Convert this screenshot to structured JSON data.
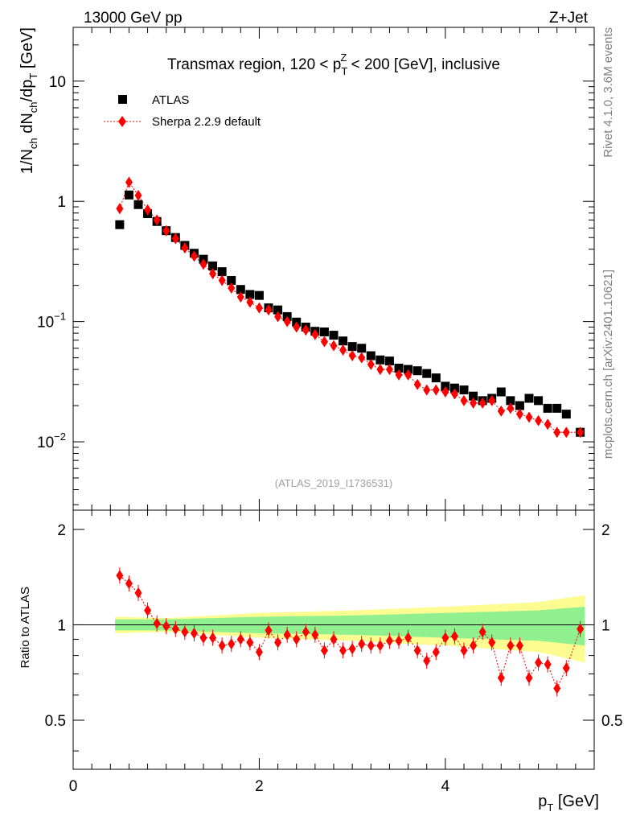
{
  "header": {
    "left": "13000 GeV pp",
    "right": "Z+Jet"
  },
  "side_labels": {
    "rivet": "Rivet 4.1.0,  3.6M events",
    "mcplots": "mcplots.cern.ch [arXiv:2401.10621]"
  },
  "chart_data": {
    "type": "scatter",
    "title": "Transmax region, 120 < p_T^Z < 200 [GeV], inclusive",
    "title_parts": {
      "pre": "Transmax region, 120 < p",
      "sup": "Z",
      "sub": "T",
      "post": " < 200 [GeV], inclusive"
    },
    "analysis_id": "(ATLAS_2019_I1736531)",
    "xlabel": "p_T [GeV]",
    "xlabel_parts": {
      "main": "p",
      "sub": "T",
      "post": " [GeV]"
    },
    "ylabel": "1/N_ch dN_ch/dp_T [GeV]",
    "ylabel_parts": {
      "a": "1/N",
      "b": "ch",
      "c": " dN",
      "d": "ch",
      "e": "/dp",
      "f": "T",
      "g": " [GeV]"
    },
    "ratio_ylabel": "Ratio to ATLAS",
    "xlim": [
      0,
      5.6
    ],
    "ylim": [
      0.0027,
      28
    ],
    "ratio_ylim": [
      0.35,
      2.3
    ],
    "yscale": "log",
    "x_ticks": [
      "0",
      "2",
      "4"
    ],
    "y_ticks": [
      "10",
      "1",
      "10^-1",
      "10^-2"
    ],
    "ratio_ticks": [
      "2",
      "1",
      "0.5"
    ],
    "legend": [
      {
        "label": "ATLAS",
        "marker": "square",
        "color": "#000000"
      },
      {
        "label": "Sherpa 2.2.9 default",
        "marker": "diamond",
        "color": "#ff0000"
      }
    ],
    "x": [
      0.5,
      0.6,
      0.7,
      0.8,
      0.9,
      1.0,
      1.1,
      1.2,
      1.3,
      1.4,
      1.5,
      1.6,
      1.7,
      1.8,
      1.9,
      2.0,
      2.1,
      2.2,
      2.3,
      2.4,
      2.5,
      2.6,
      2.7,
      2.8,
      2.9,
      3.0,
      3.1,
      3.2,
      3.3,
      3.4,
      3.5,
      3.6,
      3.7,
      3.8,
      3.9,
      4.0,
      4.1,
      4.2,
      4.3,
      4.4,
      4.5,
      4.6,
      4.7,
      4.8,
      4.9,
      5.0,
      5.1,
      5.2,
      5.3,
      5.45
    ],
    "series": [
      {
        "name": "ATLAS",
        "values": [
          0.64,
          1.13,
          0.94,
          0.79,
          0.68,
          0.57,
          0.5,
          0.43,
          0.37,
          0.33,
          0.29,
          0.26,
          0.22,
          0.185,
          0.168,
          0.165,
          0.13,
          0.125,
          0.11,
          0.099,
          0.09,
          0.083,
          0.082,
          0.077,
          0.069,
          0.062,
          0.06,
          0.052,
          0.048,
          0.047,
          0.041,
          0.04,
          0.039,
          0.037,
          0.034,
          0.029,
          0.028,
          0.027,
          0.024,
          0.022,
          0.023,
          0.026,
          0.022,
          0.02,
          0.023,
          0.022,
          0.019,
          0.019,
          0.017,
          0.012
        ]
      },
      {
        "name": "Sherpa 2.2.9 default",
        "values": [
          0.87,
          1.44,
          1.12,
          0.85,
          0.7,
          0.57,
          0.49,
          0.41,
          0.35,
          0.3,
          0.25,
          0.22,
          0.19,
          0.16,
          0.145,
          0.13,
          0.125,
          0.11,
          0.1,
          0.09,
          0.085,
          0.078,
          0.068,
          0.063,
          0.058,
          0.052,
          0.05,
          0.044,
          0.04,
          0.04,
          0.036,
          0.036,
          0.03,
          0.027,
          0.027,
          0.026,
          0.025,
          0.022,
          0.021,
          0.021,
          0.022,
          0.018,
          0.019,
          0.017,
          0.016,
          0.015,
          0.014,
          0.012,
          0.012,
          0.012
        ]
      }
    ],
    "ratio": [
      1.43,
      1.35,
      1.26,
      1.11,
      1.01,
      0.99,
      0.97,
      0.95,
      0.94,
      0.91,
      0.91,
      0.86,
      0.87,
      0.9,
      0.88,
      0.82,
      0.96,
      0.88,
      0.93,
      0.9,
      0.95,
      0.93,
      0.83,
      0.9,
      0.83,
      0.84,
      0.87,
      0.86,
      0.86,
      0.89,
      0.89,
      0.91,
      0.83,
      0.77,
      0.82,
      0.91,
      0.92,
      0.83,
      0.86,
      0.95,
      0.88,
      0.68,
      0.86,
      0.86,
      0.68,
      0.76,
      0.75,
      0.63,
      0.73,
      0.97
    ],
    "band_inner": {
      "x": [
        0.45,
        1.0,
        2.0,
        3.0,
        4.0,
        5.0,
        5.5
      ],
      "halfwidth": [
        0.04,
        0.04,
        0.06,
        0.07,
        0.09,
        0.11,
        0.14
      ]
    },
    "band_outer": {
      "x": [
        0.45,
        1.0,
        2.0,
        3.0,
        4.0,
        5.0,
        5.5
      ],
      "halfwidth": [
        0.06,
        0.05,
        0.09,
        0.11,
        0.14,
        0.18,
        0.24
      ]
    },
    "colors": {
      "data": "#000000",
      "mc": "#ff0000",
      "band_inner": "#90f090",
      "band_outer": "#fcfc90"
    }
  }
}
